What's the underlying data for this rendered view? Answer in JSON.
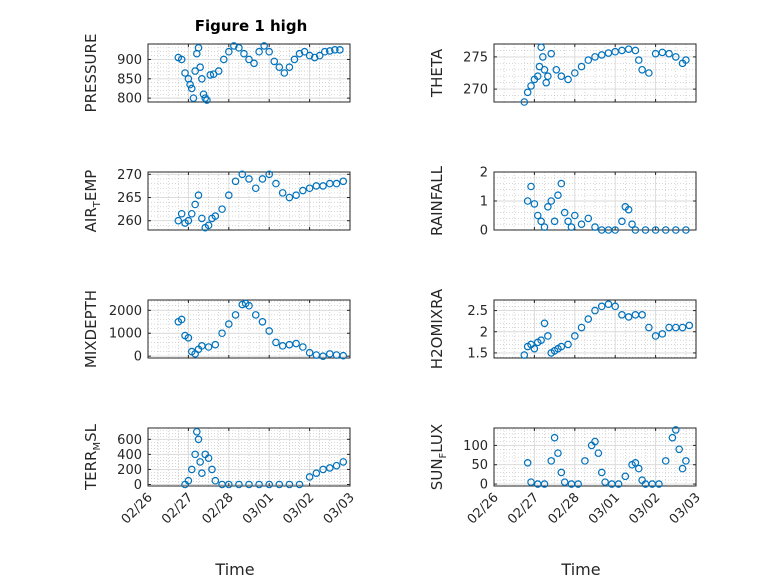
{
  "figure": {
    "title": "Figure 1 high",
    "xlabel": "Time",
    "date_ticks": [
      "02/26",
      "02/27",
      "02/28",
      "03/01",
      "03/02",
      "03/03"
    ],
    "marker_color": "#0072bd",
    "grid": "on (major and minor)"
  },
  "chart_data": [
    {
      "type": "scatter",
      "title": "Figure 1 high",
      "ylabel": "PRESSURE",
      "ylim": [
        790,
        940
      ],
      "yticks": [
        800,
        850,
        900
      ],
      "xlim": [
        "2/26",
        "3/3"
      ],
      "x": [
        "2/26 18:00",
        "2/26 20:00",
        "2/26 22:00",
        "2/27 00:00",
        "2/27 01:00",
        "2/27 02:00",
        "2/27 03:00",
        "2/27 04:00",
        "2/27 05:00",
        "2/27 06:00",
        "2/27 07:00",
        "2/27 08:00",
        "2/27 09:00",
        "2/27 10:00",
        "2/27 11:00",
        "2/27 13:00",
        "2/27 15:00",
        "2/27 18:00",
        "2/27 21:00",
        "2/28 00:00",
        "2/28 03:00",
        "2/28 06:00",
        "2/28 09:00",
        "2/28 12:00",
        "2/28 15:00",
        "2/28 18:00",
        "2/28 21:00",
        "3/01 00:00",
        "3/01 03:00",
        "3/01 06:00",
        "3/01 09:00",
        "3/01 12:00",
        "3/01 15:00",
        "3/01 18:00",
        "3/01 21:00",
        "3/02 00:00",
        "3/02 03:00",
        "3/02 06:00",
        "3/02 09:00",
        "3/02 12:00",
        "3/02 15:00",
        "3/02 18:00"
      ],
      "values": [
        905,
        900,
        865,
        850,
        835,
        825,
        800,
        870,
        915,
        930,
        880,
        850,
        810,
        800,
        795,
        860,
        862,
        870,
        900,
        920,
        935,
        930,
        915,
        900,
        890,
        920,
        935,
        920,
        895,
        880,
        865,
        880,
        900,
        915,
        920,
        910,
        905,
        910,
        920,
        922,
        925,
        925
      ]
    },
    {
      "type": "scatter",
      "ylabel": "THETA",
      "ylim": [
        268,
        277
      ],
      "yticks": [
        270,
        275
      ],
      "x": [
        "2/26 18:00",
        "2/26 20:00",
        "2/26 22:00",
        "2/27 00:00",
        "2/27 02:00",
        "2/27 03:00",
        "2/27 04:00",
        "2/27 05:00",
        "2/27 06:00",
        "2/27 07:00",
        "2/27 08:00",
        "2/27 10:00",
        "2/27 13:00",
        "2/27 16:00",
        "2/27 20:00",
        "2/28 00:00",
        "2/28 04:00",
        "2/28 08:00",
        "2/28 12:00",
        "2/28 16:00",
        "2/28 20:00",
        "3/01 00:00",
        "3/01 04:00",
        "3/01 08:00",
        "3/01 12:00",
        "3/01 14:00",
        "3/01 16:00",
        "3/01 20:00",
        "3/02 00:00",
        "3/02 04:00",
        "3/02 08:00",
        "3/02 12:00",
        "3/02 16:00",
        "3/02 18:00"
      ],
      "values": [
        268,
        269.5,
        270.5,
        271.5,
        272,
        273.5,
        276.5,
        275,
        273,
        271,
        272,
        275.5,
        273,
        272,
        271.5,
        272.5,
        273.5,
        274.5,
        275,
        275.3,
        275.6,
        275.8,
        276,
        276.2,
        276,
        274.5,
        273,
        272.5,
        275.5,
        275.7,
        275.5,
        275,
        274,
        274.5
      ]
    },
    {
      "type": "scatter",
      "ylabel": "AIR_TEMP",
      "ylim": [
        258,
        270.5
      ],
      "yticks": [
        260,
        265,
        270
      ],
      "x": [
        "2/26 18:00",
        "2/26 20:00",
        "2/26 22:00",
        "2/27 00:00",
        "2/27 02:00",
        "2/27 04:00",
        "2/27 06:00",
        "2/27 08:00",
        "2/27 10:00",
        "2/27 12:00",
        "2/27 14:00",
        "2/27 16:00",
        "2/27 20:00",
        "2/28 00:00",
        "2/28 04:00",
        "2/28 08:00",
        "2/28 12:00",
        "2/28 16:00",
        "2/28 20:00",
        "3/01 00:00",
        "3/01 04:00",
        "3/01 08:00",
        "3/01 12:00",
        "3/01 16:00",
        "3/01 20:00",
        "3/02 00:00",
        "3/02 04:00",
        "3/02 08:00",
        "3/02 12:00",
        "3/02 16:00",
        "3/02 20:00"
      ],
      "values": [
        260,
        261.5,
        259.5,
        260,
        261.5,
        263.5,
        265.5,
        260.5,
        258.5,
        259,
        260.5,
        261,
        262.5,
        265.5,
        268.5,
        270,
        269,
        267,
        269,
        270,
        268,
        266,
        265,
        265.5,
        266.5,
        267,
        267.5,
        267.5,
        268,
        268,
        268.5
      ]
    },
    {
      "type": "scatter",
      "ylabel": "RAINFALL",
      "ylim": [
        0,
        2
      ],
      "yticks": [
        0,
        1,
        2
      ],
      "x": [
        "2/26 20:00",
        "2/26 22:00",
        "2/27 00:00",
        "2/27 02:00",
        "2/27 04:00",
        "2/27 06:00",
        "2/27 08:00",
        "2/27 10:00",
        "2/27 12:00",
        "2/27 14:00",
        "2/27 16:00",
        "2/27 18:00",
        "2/27 20:00",
        "2/27 22:00",
        "2/28 00:00",
        "2/28 04:00",
        "2/28 08:00",
        "2/28 12:00",
        "2/28 16:00",
        "2/28 20:00",
        "3/01 00:00",
        "3/01 04:00",
        "3/01 06:00",
        "3/01 08:00",
        "3/01 10:00",
        "3/01 12:00",
        "3/01 18:00",
        "3/02 00:00",
        "3/02 06:00",
        "3/02 12:00",
        "3/02 18:00"
      ],
      "values": [
        1.0,
        1.5,
        0.9,
        0.5,
        0.3,
        0.1,
        0.8,
        1.0,
        0.3,
        1.2,
        1.6,
        0.6,
        0.3,
        0.1,
        0.5,
        0.2,
        0.4,
        0.1,
        0.0,
        0.0,
        0.0,
        0.3,
        0.8,
        0.7,
        0.2,
        0.0,
        0.0,
        0.0,
        0.0,
        0.0,
        0.0
      ]
    },
    {
      "type": "scatter",
      "ylabel": "MIXDEPTH",
      "ylim": [
        -80,
        2450
      ],
      "yticks": [
        0,
        1000,
        2000
      ],
      "x": [
        "2/26 18:00",
        "2/26 20:00",
        "2/26 22:00",
        "2/27 00:00",
        "2/27 02:00",
        "2/27 04:00",
        "2/27 06:00",
        "2/27 08:00",
        "2/27 12:00",
        "2/27 16:00",
        "2/27 20:00",
        "2/28 00:00",
        "2/28 04:00",
        "2/28 08:00",
        "2/28 10:00",
        "2/28 12:00",
        "2/28 16:00",
        "2/28 20:00",
        "3/01 00:00",
        "3/01 04:00",
        "3/01 08:00",
        "3/01 12:00",
        "3/01 16:00",
        "3/01 20:00",
        "3/02 00:00",
        "3/02 04:00",
        "3/02 08:00",
        "3/02 12:00",
        "3/02 16:00",
        "3/02 20:00"
      ],
      "values": [
        1500,
        1600,
        900,
        800,
        200,
        100,
        300,
        450,
        400,
        500,
        1000,
        1400,
        1800,
        2250,
        2300,
        2200,
        1800,
        1500,
        1100,
        600,
        450,
        500,
        550,
        400,
        150,
        50,
        0,
        100,
        50,
        20
      ]
    },
    {
      "type": "scatter",
      "ylabel": "H2OMIXRA",
      "ylim": [
        1.38,
        2.75
      ],
      "yticks": [
        1.5,
        2,
        2.5
      ],
      "x": [
        "2/26 18:00",
        "2/26 20:00",
        "2/26 22:00",
        "2/27 00:00",
        "2/27 02:00",
        "2/27 04:00",
        "2/27 06:00",
        "2/27 08:00",
        "2/27 10:00",
        "2/27 12:00",
        "2/27 14:00",
        "2/27 16:00",
        "2/27 20:00",
        "2/28 00:00",
        "2/28 04:00",
        "2/28 08:00",
        "2/28 12:00",
        "2/28 16:00",
        "2/28 20:00",
        "3/01 00:00",
        "3/01 04:00",
        "3/01 08:00",
        "3/01 12:00",
        "3/01 16:00",
        "3/01 20:00",
        "3/02 00:00",
        "3/02 04:00",
        "3/02 08:00",
        "3/02 12:00",
        "3/02 16:00",
        "3/02 20:00"
      ],
      "values": [
        1.45,
        1.65,
        1.7,
        1.6,
        1.75,
        1.8,
        2.2,
        1.9,
        1.5,
        1.55,
        1.6,
        1.65,
        1.7,
        1.9,
        2.1,
        2.3,
        2.5,
        2.6,
        2.65,
        2.6,
        2.4,
        2.35,
        2.4,
        2.4,
        2.1,
        1.9,
        1.95,
        2.1,
        2.1,
        2.1,
        2.15
      ]
    },
    {
      "type": "scatter",
      "ylabel": "TERR_MSL",
      "ylim": [
        -20,
        750
      ],
      "yticks": [
        0,
        200,
        400,
        600
      ],
      "x": [
        "2/26 22:00",
        "2/27 00:00",
        "2/27 02:00",
        "2/27 04:00",
        "2/27 05:00",
        "2/27 06:00",
        "2/27 07:00",
        "2/27 08:00",
        "2/27 10:00",
        "2/27 12:00",
        "2/27 14:00",
        "2/27 16:00",
        "2/27 20:00",
        "2/28 00:00",
        "2/28 06:00",
        "2/28 12:00",
        "2/28 18:00",
        "3/01 00:00",
        "3/01 06:00",
        "3/01 12:00",
        "3/01 18:00",
        "3/02 00:00",
        "3/02 04:00",
        "3/02 08:00",
        "3/02 12:00",
        "3/02 16:00",
        "3/02 20:00"
      ],
      "values": [
        0,
        50,
        200,
        400,
        700,
        600,
        300,
        150,
        400,
        350,
        200,
        50,
        0,
        0,
        0,
        0,
        0,
        0,
        0,
        0,
        0,
        100,
        150,
        200,
        220,
        250,
        300
      ]
    },
    {
      "type": "scatter",
      "ylabel": "SUN_FLUX",
      "ylim": [
        -5,
        145
      ],
      "yticks": [
        0,
        50,
        100
      ],
      "x": [
        "2/26 20:00",
        "2/26 22:00",
        "2/27 02:00",
        "2/27 06:00",
        "2/27 10:00",
        "2/27 12:00",
        "2/27 14:00",
        "2/27 16:00",
        "2/27 18:00",
        "2/27 22:00",
        "2/28 02:00",
        "2/28 06:00",
        "2/28 10:00",
        "2/28 12:00",
        "2/28 14:00",
        "2/28 16:00",
        "2/28 18:00",
        "2/28 22:00",
        "3/01 02:00",
        "3/01 06:00",
        "3/01 10:00",
        "3/01 12:00",
        "3/01 14:00",
        "3/01 16:00",
        "3/01 18:00",
        "3/01 22:00",
        "3/02 02:00",
        "3/02 06:00",
        "3/02 10:00",
        "3/02 12:00",
        "3/02 14:00",
        "3/02 16:00",
        "3/02 18:00"
      ],
      "values": [
        55,
        5,
        0,
        0,
        60,
        120,
        80,
        30,
        5,
        0,
        0,
        60,
        100,
        110,
        80,
        30,
        5,
        0,
        0,
        20,
        50,
        55,
        40,
        10,
        0,
        0,
        0,
        60,
        120,
        140,
        90,
        40,
        60
      ]
    }
  ]
}
